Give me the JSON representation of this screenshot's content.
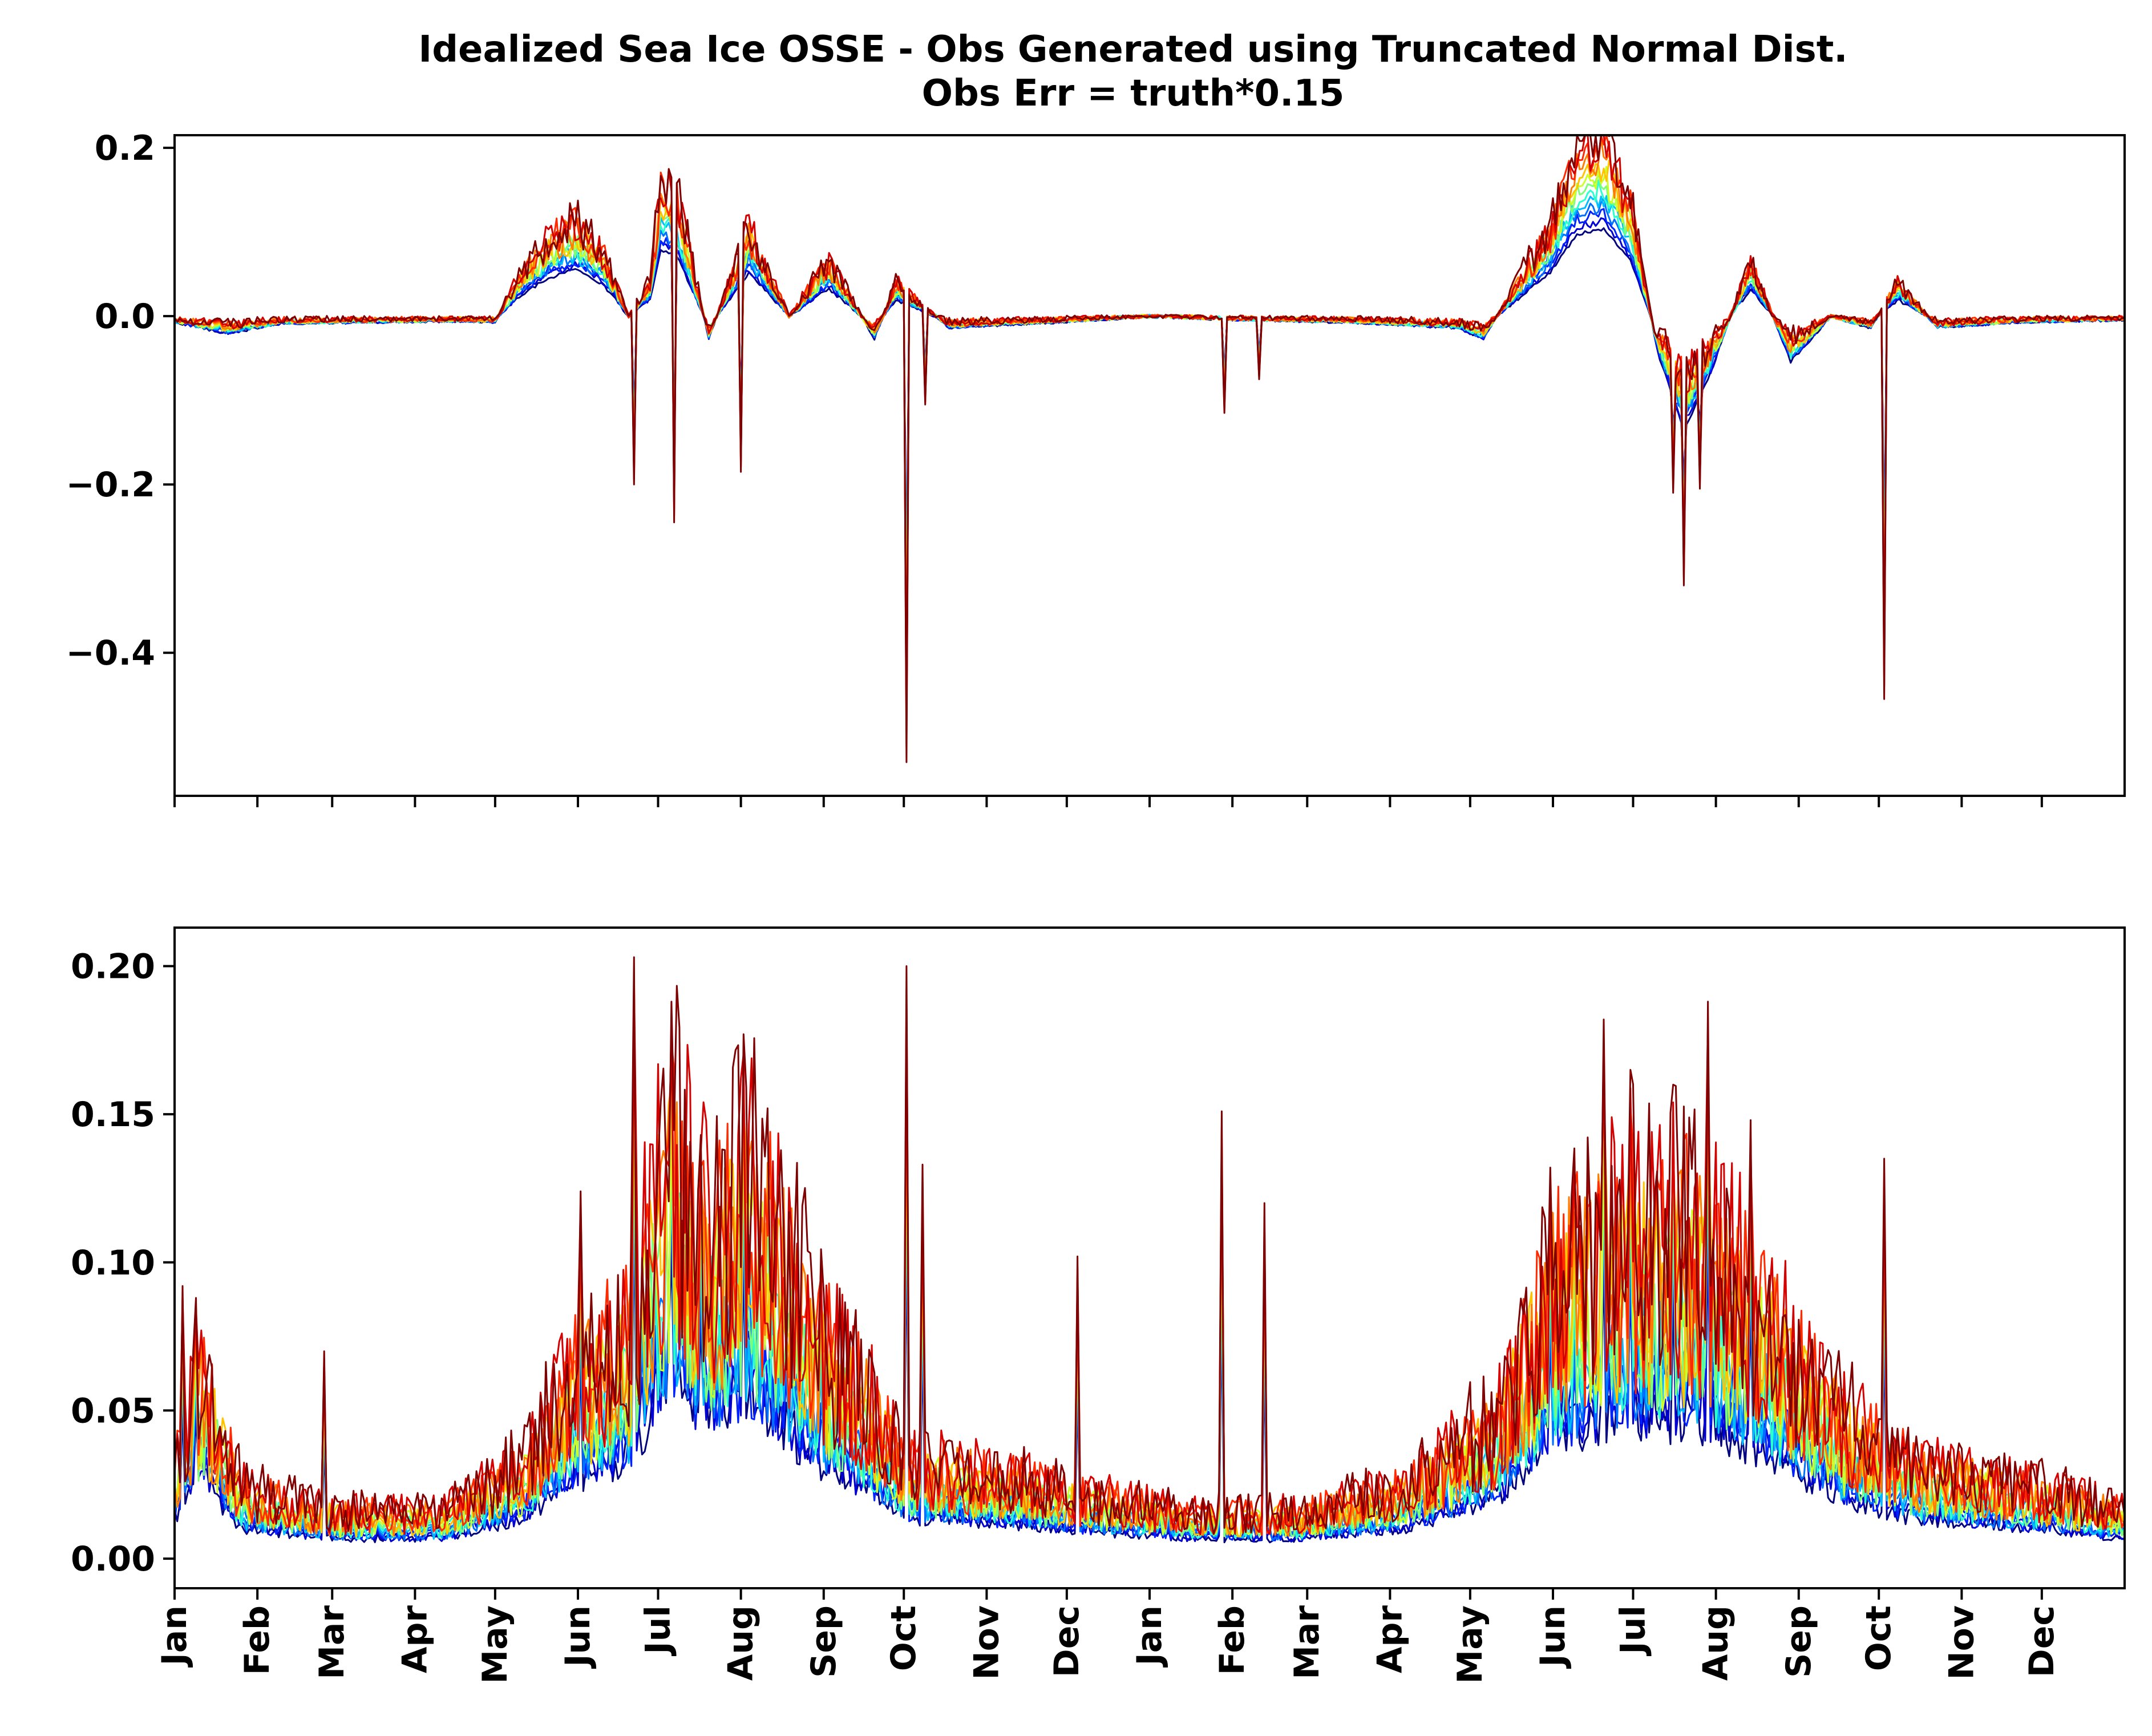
{
  "title_line1": "Idealized Sea Ice OSSE - Obs Generated using Truncated Normal Dist.",
  "title_line2": "Obs Err = truth*0.15",
  "colors": [
    "#00007f",
    "#0000d4",
    "#0022ff",
    "#0070ff",
    "#00bcff",
    "#2affcd",
    "#7dff7a",
    "#cdff2a",
    "#ffc400",
    "#ff7c00",
    "#ff2a00",
    "#d40000",
    "#7f0000"
  ],
  "chart_data": [
    {
      "type": "line",
      "panel": "top",
      "ylim": [
        -0.57,
        0.215
      ],
      "yticks": [
        0.2,
        0.0,
        -0.2,
        -0.4
      ],
      "ytick_labels": [
        "0.2",
        "0.0",
        "−0.2",
        "−0.4"
      ],
      "x_range_days": [
        0,
        730
      ],
      "xticks": [
        "Jan",
        "Feb",
        "Mar",
        "Apr",
        "May",
        "Jun",
        "Jul",
        "Aug",
        "Sep",
        "Oct",
        "Nov",
        "Dec",
        "Jan",
        "Feb",
        "Mar",
        "Apr",
        "May",
        "Jun",
        "Jul",
        "Aug",
        "Sep",
        "Oct",
        "Nov",
        "Dec"
      ],
      "xtick_labels_shown": false,
      "series_count": 13,
      "baseline_segments": [
        [
          0,
          -0.005
        ],
        [
          20,
          -0.015
        ],
        [
          40,
          -0.006
        ],
        [
          110,
          -0.004
        ],
        [
          120,
          -0.005
        ],
        [
          130,
          0.04
        ],
        [
          140,
          0.07
        ],
        [
          150,
          0.085
        ],
        [
          160,
          0.06
        ],
        [
          170,
          0.0
        ],
        [
          178,
          0.03
        ],
        [
          182,
          0.12
        ],
        [
          188,
          0.11
        ],
        [
          200,
          -0.02
        ],
        [
          215,
          0.08
        ],
        [
          230,
          0.0
        ],
        [
          245,
          0.05
        ],
        [
          262,
          -0.02
        ],
        [
          270,
          0.03
        ],
        [
          290,
          -0.01
        ],
        [
          330,
          -0.005
        ],
        [
          365,
          0.0
        ],
        [
          400,
          -0.003
        ],
        [
          440,
          -0.005
        ],
        [
          480,
          -0.01
        ],
        [
          490,
          -0.02
        ],
        [
          500,
          0.02
        ],
        [
          515,
          0.08
        ],
        [
          525,
          0.15
        ],
        [
          535,
          0.16
        ],
        [
          545,
          0.1
        ],
        [
          555,
          -0.03
        ],
        [
          565,
          -0.1
        ],
        [
          575,
          -0.05
        ],
        [
          590,
          0.05
        ],
        [
          605,
          -0.04
        ],
        [
          620,
          0.0
        ],
        [
          635,
          -0.01
        ],
        [
          645,
          0.03
        ],
        [
          660,
          -0.01
        ],
        [
          690,
          -0.005
        ],
        [
          730,
          -0.003
        ]
      ],
      "spikes": [
        {
          "day": 172,
          "value": -0.2
        },
        {
          "day": 187,
          "value": -0.245
        },
        {
          "day": 212,
          "value": -0.185
        },
        {
          "day": 274,
          "value": -0.53
        },
        {
          "day": 281,
          "value": -0.105
        },
        {
          "day": 393,
          "value": -0.115
        },
        {
          "day": 406,
          "value": -0.075
        },
        {
          "day": 561,
          "value": -0.21
        },
        {
          "day": 565,
          "value": -0.32
        },
        {
          "day": 571,
          "value": -0.205
        },
        {
          "day": 640,
          "value": -0.455
        }
      ]
    },
    {
      "type": "line",
      "panel": "bottom",
      "ylim": [
        -0.01,
        0.213
      ],
      "yticks": [
        0.0,
        0.05,
        0.1,
        0.15,
        0.2
      ],
      "ytick_labels": [
        "0.00",
        "0.05",
        "0.10",
        "0.15",
        "0.20"
      ],
      "x_range_days": [
        0,
        730
      ],
      "xticks": [
        "Jan",
        "Feb",
        "Mar",
        "Apr",
        "May",
        "Jun",
        "Jul",
        "Aug",
        "Sep",
        "Oct",
        "Nov",
        "Dec",
        "Jan",
        "Feb",
        "Mar",
        "Apr",
        "May",
        "Jun",
        "Jul",
        "Aug",
        "Sep",
        "Oct",
        "Nov",
        "Dec"
      ],
      "series_count": 13,
      "baseline_segments": [
        [
          0,
          0.02
        ],
        [
          10,
          0.04
        ],
        [
          25,
          0.015
        ],
        [
          60,
          0.01
        ],
        [
          100,
          0.01
        ],
        [
          130,
          0.02
        ],
        [
          150,
          0.04
        ],
        [
          170,
          0.05
        ],
        [
          185,
          0.09
        ],
        [
          200,
          0.07
        ],
        [
          215,
          0.08
        ],
        [
          240,
          0.05
        ],
        [
          265,
          0.03
        ],
        [
          275,
          0.02
        ],
        [
          290,
          0.02
        ],
        [
          330,
          0.015
        ],
        [
          380,
          0.01
        ],
        [
          420,
          0.01
        ],
        [
          460,
          0.015
        ],
        [
          495,
          0.03
        ],
        [
          515,
          0.06
        ],
        [
          540,
          0.07
        ],
        [
          570,
          0.07
        ],
        [
          600,
          0.05
        ],
        [
          625,
          0.03
        ],
        [
          650,
          0.02
        ],
        [
          700,
          0.015
        ],
        [
          730,
          0.01
        ]
      ],
      "spikes": [
        {
          "day": 3,
          "value": 0.092
        },
        {
          "day": 8,
          "value": 0.088
        },
        {
          "day": 56,
          "value": 0.07
        },
        {
          "day": 152,
          "value": 0.124
        },
        {
          "day": 172,
          "value": 0.203
        },
        {
          "day": 186,
          "value": 0.188
        },
        {
          "day": 197,
          "value": 0.143
        },
        {
          "day": 213,
          "value": 0.177
        },
        {
          "day": 274,
          "value": 0.2
        },
        {
          "day": 280,
          "value": 0.133
        },
        {
          "day": 338,
          "value": 0.102
        },
        {
          "day": 392,
          "value": 0.151
        },
        {
          "day": 408,
          "value": 0.12
        },
        {
          "day": 515,
          "value": 0.132
        },
        {
          "day": 535,
          "value": 0.182
        },
        {
          "day": 545,
          "value": 0.165
        },
        {
          "day": 561,
          "value": 0.16
        },
        {
          "day": 574,
          "value": 0.188
        },
        {
          "day": 590,
          "value": 0.148
        },
        {
          "day": 640,
          "value": 0.135
        }
      ]
    }
  ]
}
